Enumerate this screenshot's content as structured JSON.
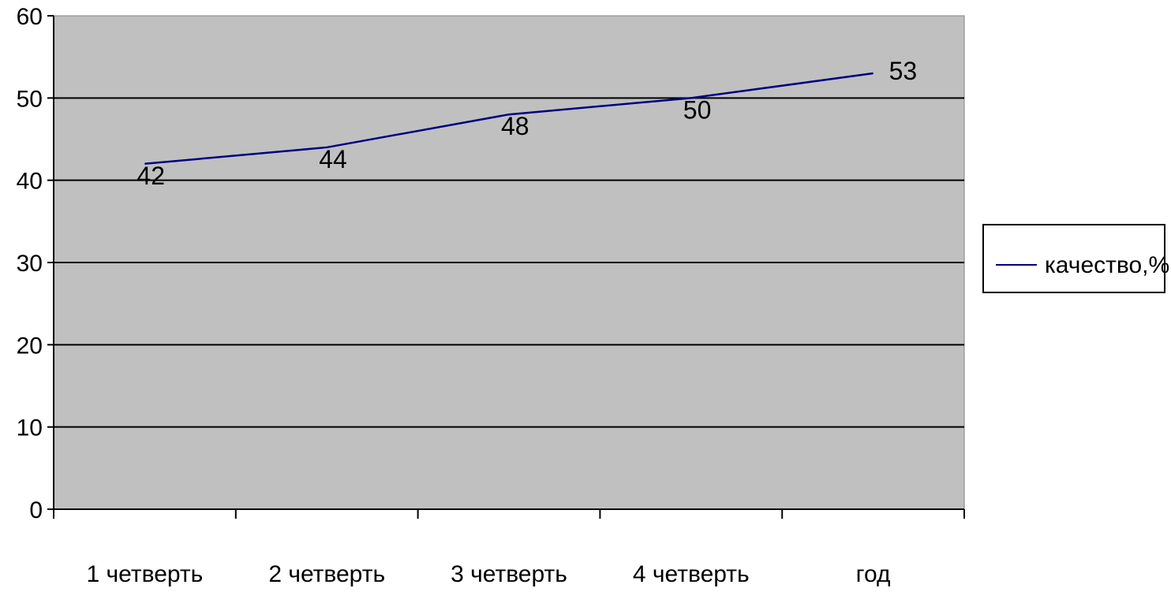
{
  "chart_data": {
    "type": "line",
    "categories": [
      "1 четверть",
      "2 четверть",
      "3 четверть",
      "4 четверть",
      "год"
    ],
    "series": [
      {
        "name": "качество,%",
        "values": [
          42,
          44,
          48,
          50,
          53
        ],
        "color": "#000080"
      }
    ],
    "data_labels": [
      "42",
      "44",
      "48",
      "50",
      "53"
    ],
    "y_ticks": [
      "0",
      "10",
      "20",
      "30",
      "40",
      "50",
      "60"
    ],
    "ylim": [
      0,
      60
    ],
    "grid": true,
    "plot_background": "#c0c0c0",
    "legend_position": "right"
  }
}
